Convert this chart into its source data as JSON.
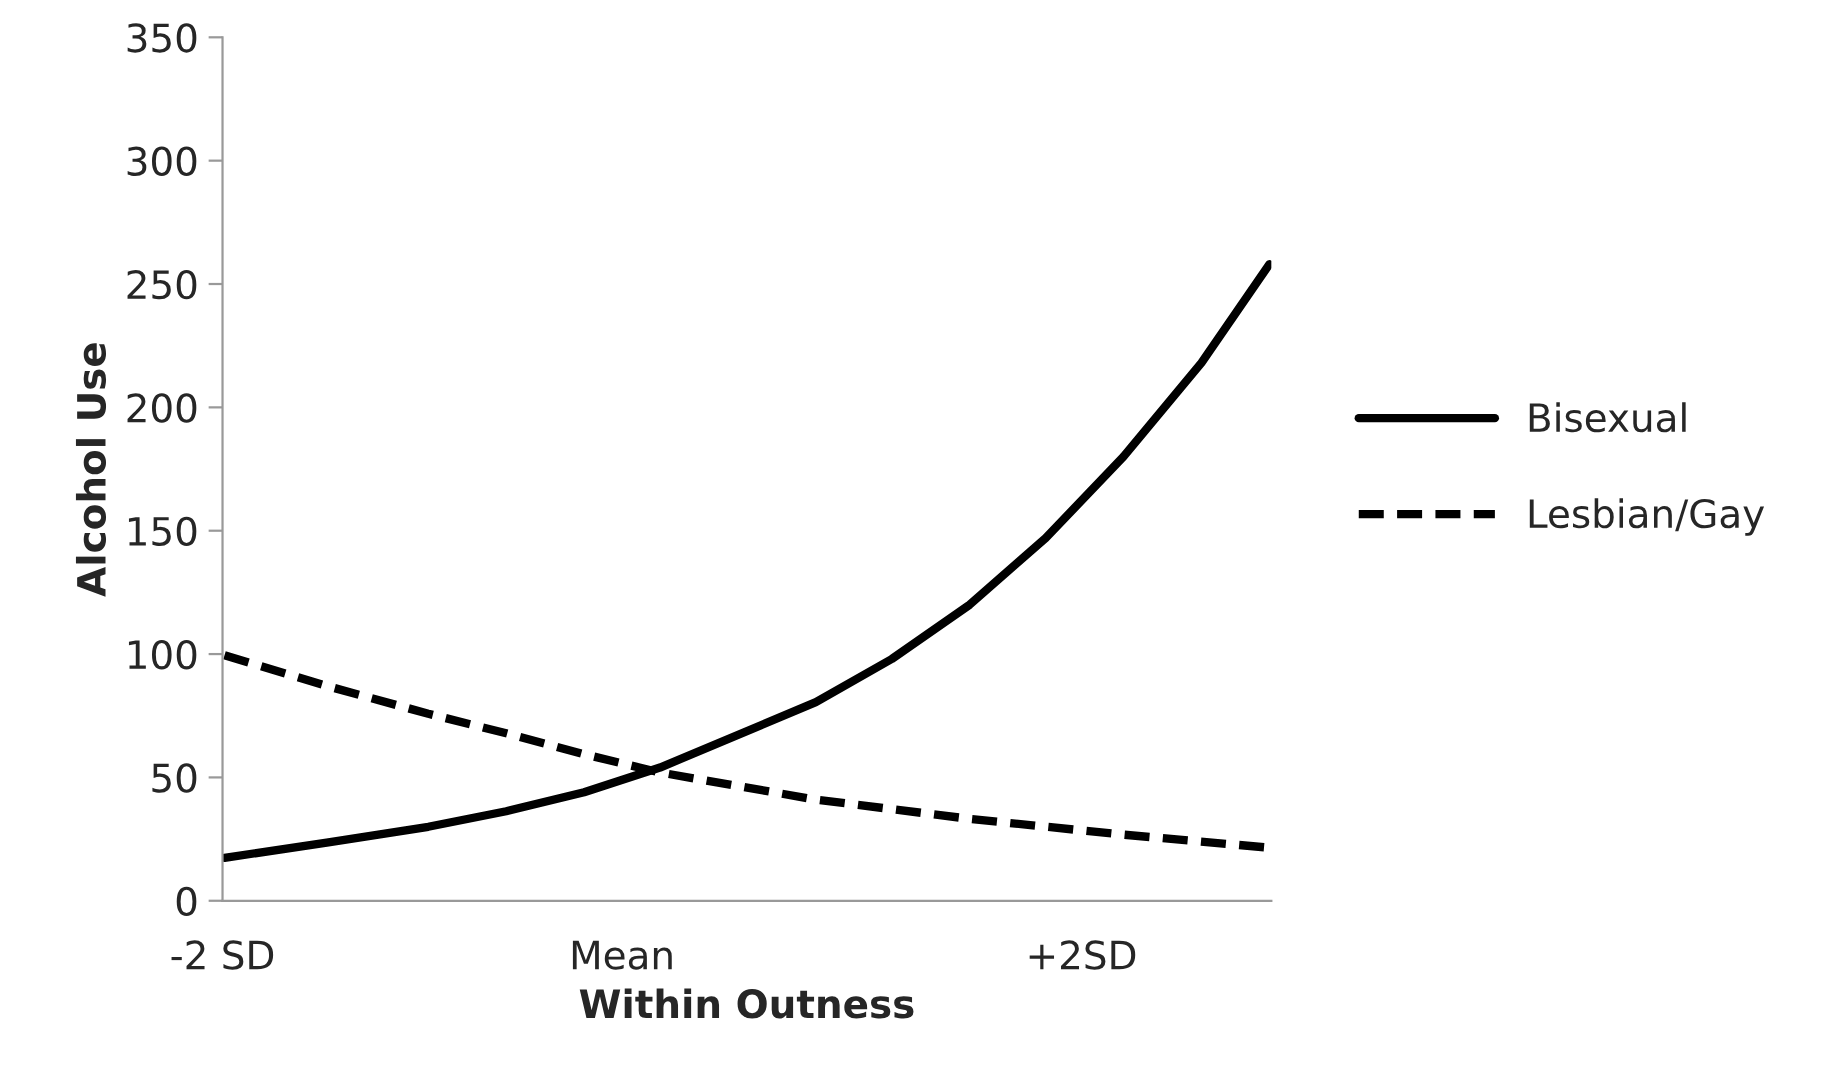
{
  "chart_data": {
    "type": "line",
    "xlabel": "Within Outness",
    "ylabel": "Alcohol Use",
    "xlim": [
      -2,
      3.25
    ],
    "xticks": [
      {
        "value": -2,
        "label": "-2 SD"
      },
      {
        "value": 0,
        "label": "Mean"
      },
      {
        "value": 2.3,
        "label": "+2SD"
      }
    ],
    "ylim": [
      0,
      350
    ],
    "yticks": [
      0,
      50,
      100,
      150,
      200,
      250,
      300,
      350
    ],
    "grid": false,
    "legend": "right",
    "series": [
      {
        "name": "Bisexual",
        "color": "#000000",
        "line_style": "solid",
        "x": [
          -1.99,
          -1.47,
          -0.97,
          -0.58,
          -0.19,
          0.19,
          0.97,
          1.35,
          1.74,
          2.12,
          2.51,
          2.9,
          3.24
        ],
        "values": [
          17.4,
          23.7,
          30,
          36.3,
          44,
          54,
          80.5,
          98,
          120,
          147,
          180,
          218,
          258
        ]
      },
      {
        "name": "Lesbian/Gay",
        "color": "#000000",
        "line_style": "dashed",
        "x": [
          -1.99,
          -1.47,
          -0.97,
          -0.58,
          -0.19,
          0.19,
          0.97,
          1.74,
          2.51,
          3.24
        ],
        "values": [
          99.5,
          86.9,
          75.8,
          67.9,
          59.4,
          52,
          41,
          33.2,
          26.8,
          21.5
        ]
      }
    ]
  }
}
